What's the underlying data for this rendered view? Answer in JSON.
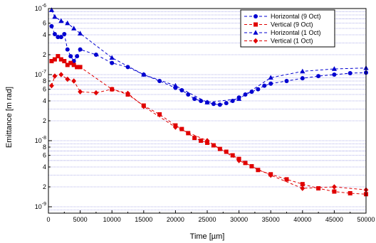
{
  "chart_data": {
    "type": "line",
    "xlabel": "Time [µm]",
    "ylabel": "Emittance [m rad]",
    "xscale": "linear",
    "yscale": "log",
    "xlim": [
      0,
      50000
    ],
    "ylim": [
      8e-10,
      1e-06
    ],
    "grid": "horizontal dotted at log decade subdivisions",
    "legend_position": "top-right",
    "x_ticks": [
      {
        "value": 0,
        "label": "0"
      },
      {
        "value": 5000,
        "label": "5000"
      },
      {
        "value": 10000,
        "label": "10000"
      },
      {
        "value": 15000,
        "label": "15000"
      },
      {
        "value": 20000,
        "label": "20000"
      },
      {
        "value": 25000,
        "label": "25000"
      },
      {
        "value": 30000,
        "label": "30000"
      },
      {
        "value": 35000,
        "label": "35000"
      },
      {
        "value": 40000,
        "label": "40000"
      },
      {
        "value": 45000,
        "label": "45000"
      },
      {
        "value": 50000,
        "label": "50000"
      }
    ],
    "y_ticks": [
      {
        "value": 1e-06,
        "mantissa": "10",
        "exponent": "-6"
      },
      {
        "value": 6e-07,
        "mantissa": "6",
        "exponent": ""
      },
      {
        "value": 4e-07,
        "mantissa": "4",
        "exponent": ""
      },
      {
        "value": 2e-07,
        "mantissa": "2",
        "exponent": ""
      },
      {
        "value": 1e-07,
        "mantissa": "10",
        "exponent": "-7"
      },
      {
        "value": 8e-08,
        "mantissa": "8",
        "exponent": ""
      },
      {
        "value": 6e-08,
        "mantissa": "6",
        "exponent": ""
      },
      {
        "value": 4e-08,
        "mantissa": "4",
        "exponent": ""
      },
      {
        "value": 2e-08,
        "mantissa": "2",
        "exponent": ""
      },
      {
        "value": 1e-08,
        "mantissa": "10",
        "exponent": "-8"
      },
      {
        "value": 8e-09,
        "mantissa": "8",
        "exponent": ""
      },
      {
        "value": 6e-09,
        "mantissa": "6",
        "exponent": ""
      },
      {
        "value": 4e-09,
        "mantissa": "4",
        "exponent": ""
      },
      {
        "value": 2e-09,
        "mantissa": "2",
        "exponent": ""
      },
      {
        "value": 1e-09,
        "mantissa": "10",
        "exponent": "-9"
      }
    ],
    "series": [
      {
        "name": "Horizontal (9 Oct)",
        "color": "#0000d0",
        "marker": "circle",
        "x": [
          500,
          1000,
          1500,
          2000,
          2500,
          3000,
          3500,
          4000,
          4500,
          5000,
          7500,
          10000,
          12500,
          15000,
          17500,
          20000,
          21000,
          22000,
          23000,
          24000,
          25000,
          26000,
          27000,
          28000,
          29000,
          30000,
          31000,
          32000,
          33000,
          34000,
          35000,
          37500,
          40000,
          42500,
          45000,
          47500,
          50000
        ],
        "y": [
          5.4e-07,
          4.1e-07,
          3.7e-07,
          3.7e-07,
          4.1e-07,
          2.4e-07,
          1.9e-07,
          1.6e-07,
          1.9e-07,
          2.4e-07,
          2e-07,
          1.5e-07,
          1.3e-07,
          1e-07,
          8e-08,
          6.3e-08,
          5.8e-08,
          5e-08,
          4.3e-08,
          4e-08,
          3.8e-08,
          3.6e-08,
          3.5e-08,
          3.7e-08,
          4e-08,
          4.5e-08,
          5e-08,
          5.5e-08,
          6e-08,
          6.8e-08,
          7.3e-08,
          8e-08,
          8.8e-08,
          9.5e-08,
          1e-07,
          1.05e-07,
          1.07e-07
        ]
      },
      {
        "name": "Vertical (9 Oct)",
        "color": "#e00000",
        "marker": "square",
        "x": [
          500,
          1000,
          1500,
          2000,
          2500,
          3000,
          3500,
          4000,
          4500,
          5000,
          10000,
          12500,
          15000,
          17500,
          20000,
          21000,
          22000,
          23000,
          24000,
          25000,
          26000,
          27000,
          28000,
          29000,
          30000,
          31000,
          32000,
          33000,
          35000,
          37500,
          40000,
          42500,
          45000,
          47500,
          50000
        ],
        "y": [
          1.6e-07,
          1.7e-07,
          1.9e-07,
          1.7e-07,
          1.6e-07,
          1.4e-07,
          1.5e-07,
          1.4e-07,
          1.3e-07,
          1.3e-07,
          6e-08,
          5e-08,
          3.4e-08,
          2.5e-08,
          1.7e-08,
          1.5e-08,
          1.3e-08,
          1.1e-08,
          1e-08,
          9.3e-09,
          8.5e-09,
          7.5e-09,
          6.8e-09,
          6e-09,
          5.3e-09,
          4.6e-09,
          4.1e-09,
          3.6e-09,
          3.1e-09,
          2.6e-09,
          2.2e-09,
          1.9e-09,
          1.7e-09,
          1.6e-09,
          1.55e-09
        ]
      },
      {
        "name": "Horizontal (1 Oct)",
        "color": "#0000d0",
        "marker": "triangle",
        "x": [
          500,
          1000,
          2000,
          3000,
          4000,
          5000,
          10000,
          15000,
          20000,
          25000,
          30000,
          35000,
          40000,
          45000,
          50000
        ],
        "y": [
          9.5e-07,
          7.5e-07,
          6.5e-07,
          6e-07,
          5e-07,
          4.2e-07,
          1.8e-07,
          1e-07,
          6.8e-08,
          3.8e-08,
          4.3e-08,
          9e-08,
          1.12e-07,
          1.22e-07,
          1.26e-07
        ]
      },
      {
        "name": "Vertical (1 Oct)",
        "color": "#e00000",
        "marker": "diamond",
        "x": [
          500,
          1000,
          2000,
          3000,
          4000,
          5000,
          7500,
          10000,
          12500,
          15000,
          20000,
          25000,
          30000,
          35000,
          40000,
          45000,
          50000
        ],
        "y": [
          6.8e-08,
          9.5e-08,
          1e-07,
          8.5e-08,
          8e-08,
          5.5e-08,
          5.3e-08,
          6e-08,
          5.2e-08,
          3.3e-08,
          1.6e-08,
          1e-08,
          5e-09,
          3e-09,
          1.9e-09,
          2e-09,
          1.8e-09
        ]
      }
    ]
  }
}
